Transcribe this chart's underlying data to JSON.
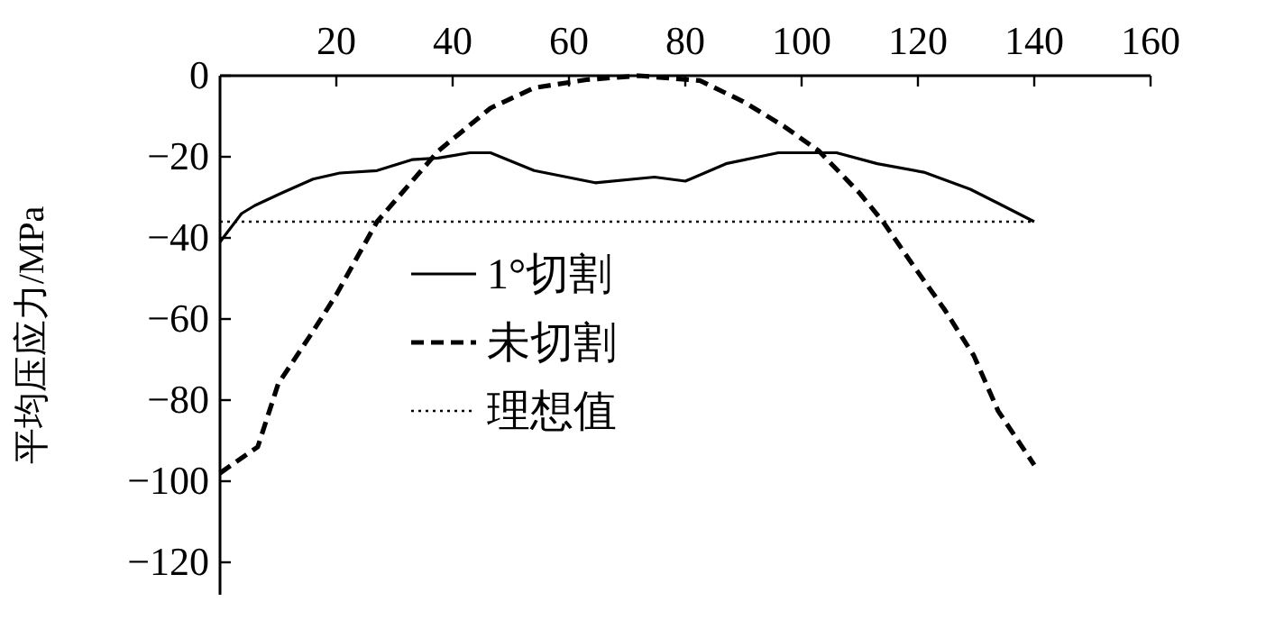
{
  "chart_data": {
    "type": "line",
    "ylabel": "平均压应力/MPa",
    "xlim": [
      0,
      160
    ],
    "xticks": [
      20,
      40,
      60,
      80,
      100,
      120,
      140,
      160
    ],
    "ylim": [
      -128,
      0
    ],
    "yticks": [
      0,
      {
        "value": -20,
        "label": "−20"
      },
      {
        "value": -40,
        "label": "−40"
      },
      {
        "value": -60,
        "label": "−60"
      },
      {
        "value": -80,
        "label": "−80"
      },
      {
        "value": -100,
        "label": "−100"
      },
      {
        "value": -120,
        "label": "−120"
      }
    ],
    "legend": "left",
    "grid": false,
    "series": [
      {
        "name": "1°切割",
        "color": "#000000",
        "line_style": "solid",
        "x": [
          0,
          3.7,
          6,
          10.5,
          16,
          20.6,
          27,
          33,
          37.5,
          43,
          46.5,
          54,
          64.5,
          74.7,
          80,
          87,
          96,
          106,
          113,
          121,
          129,
          134,
          140
        ],
        "values": [
          -41,
          -34,
          -32,
          -29,
          -25.5,
          -24,
          -23.4,
          -20.7,
          -20.3,
          -19,
          -19,
          -23.4,
          -26.4,
          -25,
          -26,
          -21.7,
          -19,
          -19,
          -21.7,
          -23.8,
          -28,
          -31.6,
          -36
        ]
      },
      {
        "name": "未切割",
        "color": "#000000",
        "line_style": "dashed",
        "x": [
          0,
          6.5,
          10,
          16,
          20,
          27,
          37.5,
          46.5,
          54,
          63,
          72,
          82.5,
          90,
          97,
          103,
          110,
          114,
          119.3,
          124.5,
          129.6,
          133.8,
          140
        ],
        "values": [
          -98,
          -91.5,
          -76,
          -63,
          -54,
          -36,
          -18.6,
          -8,
          -3,
          -1,
          0,
          -1.2,
          -6.4,
          -12.5,
          -18.6,
          -29,
          -36,
          -47,
          -57.5,
          -69,
          -82.7,
          -96
        ]
      },
      {
        "name": "理想值",
        "color": "#000000",
        "line_style": "dotted",
        "x": [
          0,
          140
        ],
        "values": [
          -36,
          -36
        ]
      }
    ]
  }
}
